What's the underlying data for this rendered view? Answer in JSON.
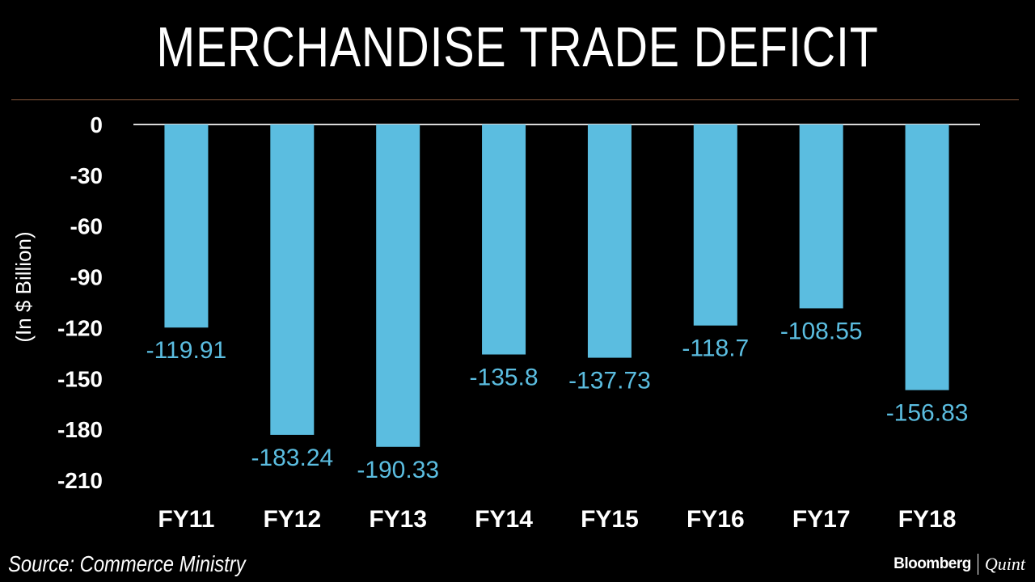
{
  "header": {
    "title": "MERCHANDISE TRADE DEFICIT"
  },
  "footer": {
    "source": "Source: Commerce Ministry",
    "brand_primary": "Bloomberg",
    "brand_secondary": "Quint"
  },
  "colors": {
    "background": "#000000",
    "bar": "#5bbde0",
    "value_label": "#5bbde0",
    "text": "#ffffff",
    "rule": "#8a5a3c"
  },
  "chart_data": {
    "type": "bar",
    "title": "MERCHANDISE TRADE DEFICIT",
    "xlabel": "",
    "ylabel": "(In $ Billion)",
    "categories": [
      "FY11",
      "FY12",
      "FY13",
      "FY14",
      "FY15",
      "FY16",
      "FY17",
      "FY18"
    ],
    "values": [
      -119.91,
      -183.24,
      -190.33,
      -135.8,
      -137.73,
      -118.7,
      -108.55,
      -156.83
    ],
    "value_labels": [
      "-119.91",
      "-183.24",
      "-190.33",
      "-135.8",
      "-137.73",
      "-118.7",
      "-108.55",
      "-156.83"
    ],
    "ylim": [
      -210,
      0
    ],
    "yticks": [
      0,
      -30,
      -60,
      -90,
      -120,
      -150,
      -180,
      -210
    ],
    "ytick_labels": [
      "0",
      "-30",
      "-60",
      "-90",
      "-120",
      "-150",
      "-180",
      "-210"
    ],
    "grid": false,
    "legend": "none"
  }
}
